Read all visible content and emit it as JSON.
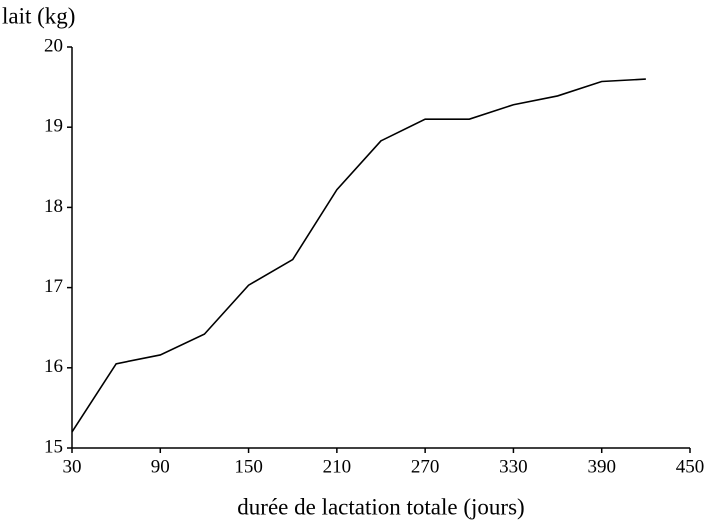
{
  "chart_data": {
    "type": "line",
    "y_label": "lait (kg)",
    "x_label": "durée de lactation totale (jours)",
    "x": [
      30,
      60,
      90,
      120,
      150,
      180,
      210,
      240,
      270,
      300,
      330,
      360,
      390,
      420
    ],
    "series": [
      {
        "color": "#000000",
        "values": [
          15.2,
          16.05,
          16.16,
          16.42,
          17.03,
          17.35,
          18.22,
          18.83,
          19.1,
          19.1,
          19.28,
          19.39,
          19.57,
          19.6
        ]
      }
    ],
    "xlim": [
      30,
      450
    ],
    "xticks": [
      30,
      90,
      150,
      210,
      270,
      330,
      390,
      450
    ],
    "ylim": [
      15,
      20
    ],
    "yticks": [
      15,
      16,
      17,
      18,
      19,
      20
    ]
  }
}
